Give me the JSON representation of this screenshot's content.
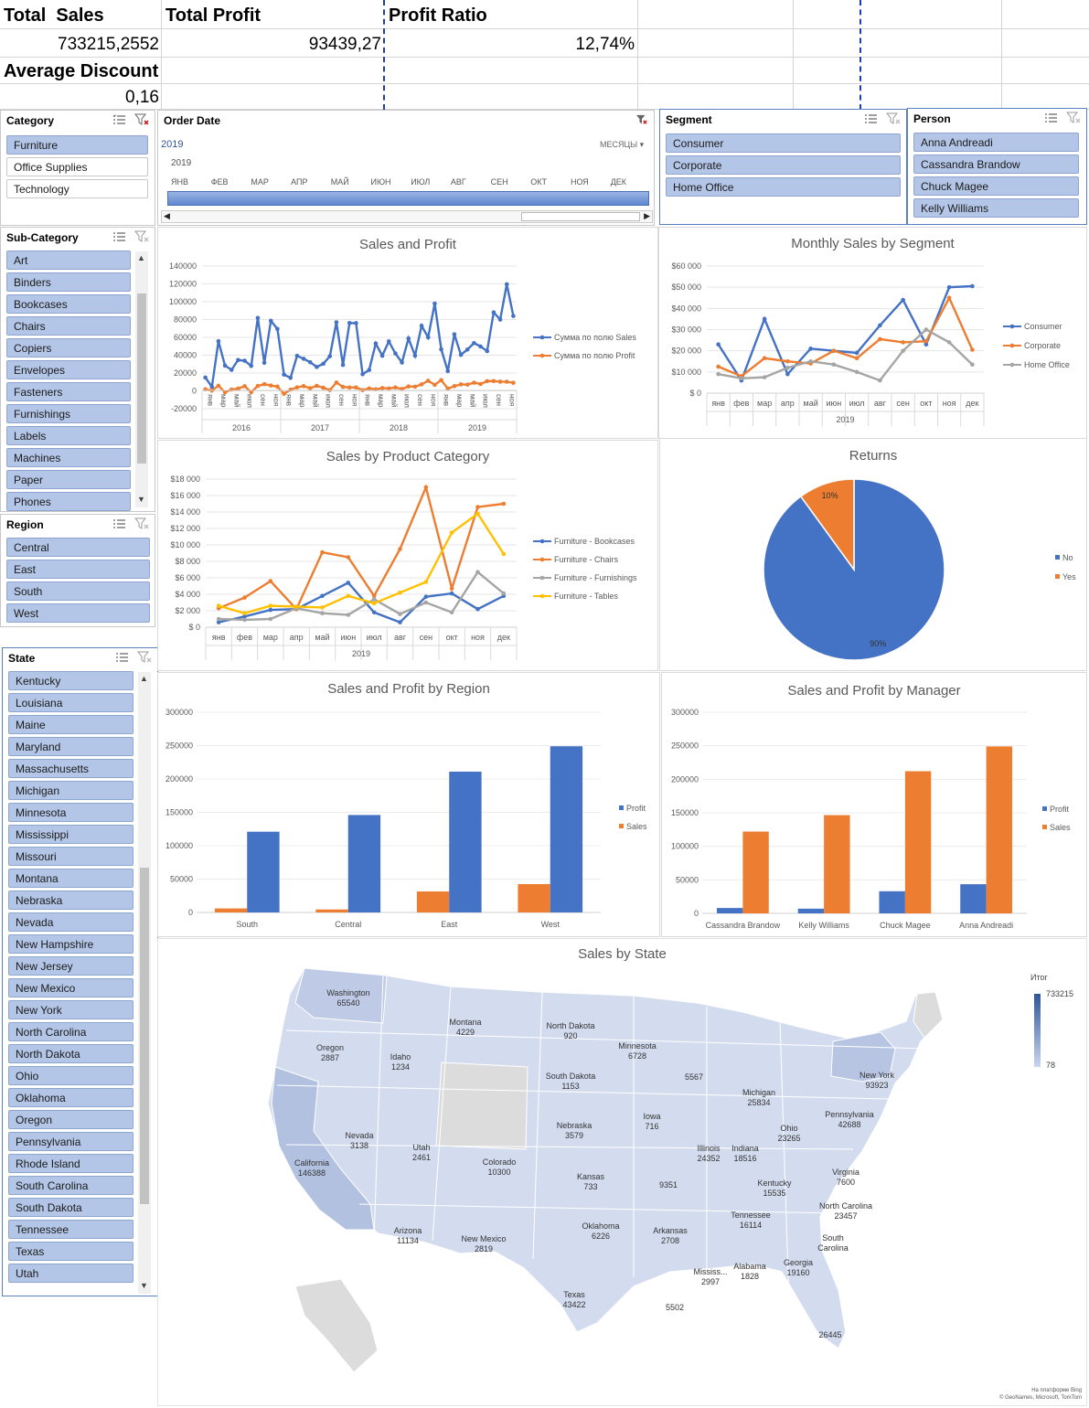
{
  "kpis": {
    "total_sales_label": "Total  Sales",
    "total_sales_value": "733215,2552",
    "total_profit_label": "Total Profit",
    "total_profit_value": "93439,27",
    "profit_ratio_label": "Profit Ratio",
    "profit_ratio_value": "12,74%",
    "avg_discount_label": "Average Discount",
    "avg_discount_value": "0,16"
  },
  "slicers": {
    "category": {
      "title": "Category",
      "items": [
        {
          "label": "Furniture",
          "selected": true
        },
        {
          "label": "Office Supplies",
          "selected": false
        },
        {
          "label": "Technology",
          "selected": false
        }
      ]
    },
    "subcategory": {
      "title": "Sub-Category",
      "items": [
        "Art",
        "Binders",
        "Bookcases",
        "Chairs",
        "Copiers",
        "Envelopes",
        "Fasteners",
        "Furnishings",
        "Labels",
        "Machines",
        "Paper",
        "Phones"
      ]
    },
    "region": {
      "title": "Region",
      "items": [
        "Central",
        "East",
        "South",
        "West"
      ]
    },
    "state": {
      "title": "State",
      "items": [
        "Kentucky",
        "Louisiana",
        "Maine",
        "Maryland",
        "Massachusetts",
        "Michigan",
        "Minnesota",
        "Mississippi",
        "Missouri",
        "Montana",
        "Nebraska",
        "Nevada",
        "New Hampshire",
        "New Jersey",
        "New Mexico",
        "New York",
        "North Carolina",
        "North Dakota",
        "Ohio",
        "Oklahoma",
        "Oregon",
        "Pennsylvania",
        "Rhode Island",
        "South Carolina",
        "South Dakota",
        "Tennessee",
        "Texas",
        "Utah"
      ]
    },
    "segment": {
      "title": "Segment",
      "items": [
        "Consumer",
        "Corporate",
        "Home Office"
      ]
    },
    "person": {
      "title": "Person",
      "items": [
        "Anna Andreadi",
        "Cassandra Brandow",
        "Chuck Magee",
        "Kelly Williams"
      ]
    }
  },
  "timeline": {
    "title": "Order Date",
    "selected_year": "2019",
    "level": "МЕСЯЦЫ",
    "year_label": "2019",
    "months": [
      "ЯНВ",
      "ФЕВ",
      "МАР",
      "АПР",
      "МАЙ",
      "ИЮН",
      "ИЮЛ",
      "АВГ",
      "СЕН",
      "ОКТ",
      "НОЯ",
      "ДЕК"
    ]
  },
  "colors": {
    "blue": "#4472c4",
    "orange": "#ed7d31",
    "gray": "#a5a5a5",
    "yellow": "#ffc000",
    "slicer_selected": "#b4c6e7"
  },
  "chart_data": [
    {
      "id": "sales-profit",
      "type": "line",
      "title": "Sales and Profit",
      "ylim": [
        -20000,
        140000
      ],
      "yticks": [
        -20000,
        0,
        20000,
        40000,
        60000,
        80000,
        100000,
        120000,
        140000
      ],
      "month_labels": [
        "янв",
        "мар",
        "май",
        "июл",
        "сен",
        "ноя"
      ],
      "years": [
        "2016",
        "2017",
        "2018",
        "2019"
      ],
      "series": [
        {
          "name": "Сумма по полю Sales",
          "color": "#4472c4",
          "values": [
            15000,
            4500,
            55700,
            28300,
            23600,
            34600,
            33800,
            28000,
            81800,
            31500,
            78600,
            69500,
            18200,
            14600,
            39300,
            36000,
            32100,
            26800,
            30400,
            38900,
            76900,
            29100,
            76100,
            76000,
            18700,
            23500,
            53100,
            39400,
            55500,
            42000,
            31800,
            58800,
            39500,
            73000,
            60000,
            97900,
            46600,
            22200,
            63400,
            40400,
            46400,
            53600,
            49800,
            44600,
            88000,
            80000,
            119600,
            84000
          ]
        },
        {
          "name": "Сумма по полю Profit",
          "color": "#ed7d31",
          "values": [
            1800,
            300,
            5700,
            -1500,
            1500,
            2500,
            5200,
            -1400,
            5500,
            7500,
            6000,
            4800,
            -3300,
            1400,
            3900,
            5300,
            3000,
            5600,
            3500,
            900,
            9300,
            4400,
            3800,
            3800,
            800,
            2700,
            1800,
            3100,
            2700,
            3800,
            2100,
            4900,
            4700,
            7300,
            11300,
            6800,
            12000,
            2500,
            5300,
            7300,
            7000,
            9200,
            7700,
            10900,
            11000,
            10300,
            10200,
            9000
          ]
        }
      ]
    },
    {
      "id": "segment",
      "type": "line",
      "title": "Monthly Sales by Segment",
      "ylim": [
        0,
        60000
      ],
      "yticks": [
        0,
        10000,
        20000,
        30000,
        40000,
        50000,
        60000
      ],
      "ytick_labels": [
        "$ 0",
        "$10 000",
        "$20 000",
        "$30 000",
        "$40 000",
        "$50 000",
        "$60 000"
      ],
      "categories": [
        "янв",
        "фев",
        "мар",
        "апр",
        "май",
        "июн",
        "июл",
        "авг",
        "сен",
        "окт",
        "ноя",
        "дек"
      ],
      "xlabel": "2019",
      "series": [
        {
          "name": "Consumer",
          "color": "#4472c4",
          "values": [
            23000,
            6000,
            35000,
            9000,
            21000,
            20000,
            19000,
            32000,
            44000,
            23000,
            50000,
            50500
          ]
        },
        {
          "name": "Corporate",
          "color": "#ed7d31",
          "values": [
            12500,
            8000,
            16500,
            15000,
            14000,
            20000,
            16500,
            25500,
            24000,
            24500,
            45000,
            20500
          ]
        },
        {
          "name": "Home Office",
          "color": "#a5a5a5",
          "values": [
            9000,
            7000,
            7500,
            12000,
            15000,
            13500,
            10000,
            6000,
            20000,
            30000,
            24000,
            13500
          ]
        }
      ]
    },
    {
      "id": "product-category",
      "type": "line",
      "title": "Sales by Product Category",
      "ylim": [
        0,
        18000
      ],
      "yticks": [
        0,
        2000,
        4000,
        6000,
        8000,
        10000,
        12000,
        14000,
        16000,
        18000
      ],
      "ytick_labels": [
        "$ 0",
        "$2 000",
        "$4 000",
        "$6 000",
        "$8 000",
        "$10 000",
        "$12 000",
        "$14 000",
        "$16 000",
        "$18 000"
      ],
      "categories": [
        "янв",
        "фев",
        "мар",
        "апр",
        "май",
        "июн",
        "июл",
        "авг",
        "сен",
        "окт",
        "ноя",
        "дек"
      ],
      "xlabel": "2019",
      "series": [
        {
          "name": "Furniture - Bookcases",
          "color": "#4472c4",
          "values": [
            600,
            1300,
            2100,
            2200,
            3800,
            5400,
            1800,
            600,
            3700,
            4100,
            2200,
            3800
          ]
        },
        {
          "name": "Furniture - Chairs",
          "color": "#ed7d31",
          "values": [
            2300,
            3600,
            5600,
            2200,
            9100,
            8500,
            3800,
            9500,
            17000,
            4700,
            14600,
            15000
          ]
        },
        {
          "name": "Furniture - Furnishings",
          "color": "#a5a5a5",
          "values": [
            1000,
            900,
            1000,
            2300,
            1700,
            1500,
            3400,
            1600,
            3000,
            1800,
            6700,
            4100
          ]
        },
        {
          "name": "Furniture - Tables",
          "color": "#ffc000",
          "values": [
            2600,
            1700,
            2600,
            2500,
            2400,
            3800,
            2900,
            4200,
            5500,
            11500,
            13800,
            8900
          ]
        }
      ]
    },
    {
      "id": "returns",
      "type": "pie",
      "title": "Returns",
      "categories": [
        "No",
        "Yes"
      ],
      "values": [
        90,
        10
      ],
      "labels": [
        "90%",
        "10%"
      ],
      "colors": [
        "#4472c4",
        "#ed7d31"
      ]
    },
    {
      "id": "region",
      "type": "bar",
      "title": "Sales and Profit by Region",
      "categories": [
        "South",
        "Central",
        "East",
        "West"
      ],
      "ylim": [
        0,
        300000
      ],
      "yticks": [
        0,
        50000,
        100000,
        150000,
        200000,
        250000,
        300000
      ],
      "series": [
        {
          "name": "Profit",
          "color": "#4472c4",
          "values": [
            121000,
            146000,
            211000,
            249000
          ]
        },
        {
          "name": "Sales",
          "color": "#ed7d31",
          "values": [
            6000,
            4500,
            31500,
            42500
          ]
        }
      ]
    },
    {
      "id": "manager",
      "type": "bar",
      "title": "Sales and Profit by Manager",
      "categories": [
        "Cassandra Brandow",
        "Kelly Williams",
        "Chuck Magee",
        "Anna Andreadi"
      ],
      "ylim": [
        0,
        300000
      ],
      "yticks": [
        0,
        50000,
        100000,
        150000,
        200000,
        250000,
        300000
      ],
      "series": [
        {
          "name": "Profit",
          "color": "#4472c4",
          "values": [
            8000,
            7000,
            33000,
            43500
          ]
        },
        {
          "name": "Sales",
          "color": "#ed7d31",
          "values": [
            122000,
            146500,
            212000,
            249000
          ]
        }
      ]
    }
  ],
  "map": {
    "title": "Sales by State",
    "legend_title": "Итог",
    "legend_max": "733215",
    "legend_min": "78",
    "credit_1": "На платформе Bing",
    "credit_2": "© GeoNames, Microsoft, TomTom",
    "states": [
      {
        "name": "Washington",
        "value": "65540"
      },
      {
        "name": "Oregon",
        "value": "2887"
      },
      {
        "name": "Idaho",
        "value": "1234"
      },
      {
        "name": "Montana",
        "value": "4229"
      },
      {
        "name": "North Dakota",
        "value": "920"
      },
      {
        "name": "Minnesota",
        "value": "6728"
      },
      {
        "name": "South Dakota",
        "value": "1153"
      },
      {
        "name": "",
        "value": "5567"
      },
      {
        "name": "Michigan",
        "value": "25834"
      },
      {
        "name": "New York",
        "value": "93923"
      },
      {
        "name": "Pennsylvania",
        "value": "42688"
      },
      {
        "name": "Nebraska",
        "value": "3579"
      },
      {
        "name": "Iowa",
        "value": "716"
      },
      {
        "name": "Nevada",
        "value": "3138"
      },
      {
        "name": "Utah",
        "value": "2461"
      },
      {
        "name": "California",
        "value": "146388"
      },
      {
        "name": "Colorado",
        "value": "10300"
      },
      {
        "name": "Illinois",
        "value": "24352"
      },
      {
        "name": "Indiana",
        "value": "18516"
      },
      {
        "name": "Ohio",
        "value": "23265"
      },
      {
        "name": "Kansas",
        "value": "733"
      },
      {
        "name": "",
        "value": "9351"
      },
      {
        "name": "Kentucky",
        "value": "15535"
      },
      {
        "name": "Virginia",
        "value": "7600"
      },
      {
        "name": "North Carolina",
        "value": "23457"
      },
      {
        "name": "Tennessee",
        "value": "16114"
      },
      {
        "name": "Arizona",
        "value": "11134"
      },
      {
        "name": "New Mexico",
        "value": "2819"
      },
      {
        "name": "Oklahoma",
        "value": "6226"
      },
      {
        "name": "Arkansas",
        "value": "2708"
      },
      {
        "name": "South Carolina",
        "value": ""
      },
      {
        "name": "Mississ...",
        "value": "2997"
      },
      {
        "name": "Alabama",
        "value": "1828"
      },
      {
        "name": "Georgia",
        "value": "19160"
      },
      {
        "name": "Texas",
        "value": "43422"
      },
      {
        "name": "",
        "value": "5502"
      },
      {
        "name": "",
        "value": "26445"
      }
    ]
  }
}
